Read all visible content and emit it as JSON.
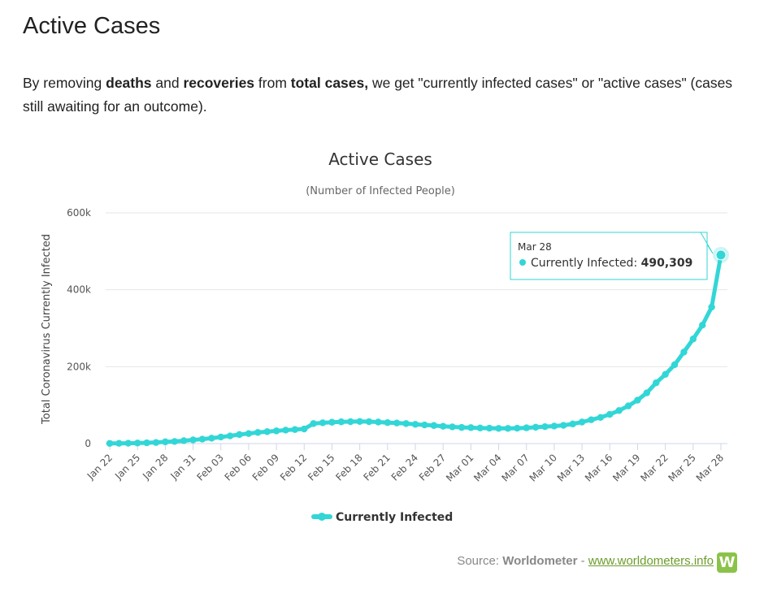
{
  "page": {
    "title": "Active Cases",
    "intro": {
      "p1": "By removing ",
      "b1": "deaths",
      "p2": " and ",
      "b2": "recoveries",
      "p3": " from ",
      "b3": "total cases,",
      "p4": " we get \"currently infected cases\" or \"active cases\" (cases still awaiting for an outcome)."
    }
  },
  "colors": {
    "series": "#33d6d6",
    "grid": "#e6e6e6",
    "axis": "#ccd6eb",
    "tooltip_border": "#33d6d6",
    "logo": "#8bc34a"
  },
  "chart_data": {
    "type": "line",
    "title": "Active Cases",
    "subtitle": "(Number of Infected People)",
    "ylabel": "Total Coronavirus Currently Infected",
    "xlabel": "",
    "ylim": [
      0,
      600000
    ],
    "yticks": [
      {
        "value": 0,
        "label": "0"
      },
      {
        "value": 200000,
        "label": "200k"
      },
      {
        "value": 400000,
        "label": "400k"
      },
      {
        "value": 600000,
        "label": "600k"
      }
    ],
    "xtick_labels": [
      "Jan 22",
      "Jan 25",
      "Jan 28",
      "Jan 31",
      "Feb 03",
      "Feb 06",
      "Feb 09",
      "Feb 12",
      "Feb 15",
      "Feb 18",
      "Feb 21",
      "Feb 24",
      "Feb 27",
      "Mar 01",
      "Mar 04",
      "Mar 07",
      "Mar 10",
      "Mar 13",
      "Mar 16",
      "Mar 19",
      "Mar 22",
      "Mar 25",
      "Mar 28"
    ],
    "grid": true,
    "legend_position": "bottom-center",
    "series": [
      {
        "name": "Currently Infected",
        "x": [
          "Jan 22",
          "Jan 23",
          "Jan 24",
          "Jan 25",
          "Jan 26",
          "Jan 27",
          "Jan 28",
          "Jan 29",
          "Jan 30",
          "Jan 31",
          "Feb 01",
          "Feb 02",
          "Feb 03",
          "Feb 04",
          "Feb 05",
          "Feb 06",
          "Feb 07",
          "Feb 08",
          "Feb 09",
          "Feb 10",
          "Feb 11",
          "Feb 12",
          "Feb 13",
          "Feb 14",
          "Feb 15",
          "Feb 16",
          "Feb 17",
          "Feb 18",
          "Feb 19",
          "Feb 20",
          "Feb 21",
          "Feb 22",
          "Feb 23",
          "Feb 24",
          "Feb 25",
          "Feb 26",
          "Feb 27",
          "Feb 28",
          "Feb 29",
          "Mar 01",
          "Mar 02",
          "Mar 03",
          "Mar 04",
          "Mar 05",
          "Mar 06",
          "Mar 07",
          "Mar 08",
          "Mar 09",
          "Mar 10",
          "Mar 11",
          "Mar 12",
          "Mar 13",
          "Mar 14",
          "Mar 15",
          "Mar 16",
          "Mar 17",
          "Mar 18",
          "Mar 19",
          "Mar 20",
          "Mar 21",
          "Mar 22",
          "Mar 23",
          "Mar 24",
          "Mar 25",
          "Mar 26",
          "Mar 27",
          "Mar 28"
        ],
        "values": [
          500,
          600,
          900,
          1400,
          2000,
          2800,
          4500,
          5500,
          7500,
          9500,
          11500,
          14000,
          17000,
          20000,
          23500,
          26000,
          29000,
          31000,
          33000,
          35000,
          36500,
          38000,
          52000,
          54000,
          55500,
          56500,
          57000,
          57500,
          57000,
          56000,
          54500,
          53500,
          52000,
          50000,
          48500,
          47000,
          45000,
          43500,
          42000,
          41500,
          40500,
          40000,
          39500,
          39500,
          40000,
          41000,
          42500,
          44000,
          45500,
          47500,
          51000,
          56000,
          62000,
          68000,
          76000,
          86000,
          98000,
          113000,
          132000,
          158000,
          180000,
          205000,
          238000,
          272000,
          308000,
          355000,
          490309
        ]
      }
    ],
    "tooltip": {
      "date": "Mar 28",
      "series": "Currently Infected",
      "value": "490,309"
    }
  },
  "source": {
    "prefix": "Source: ",
    "name": "Worldometer",
    "sep": " - ",
    "link": "www.worldometers.info",
    "logo_letter": "W"
  }
}
